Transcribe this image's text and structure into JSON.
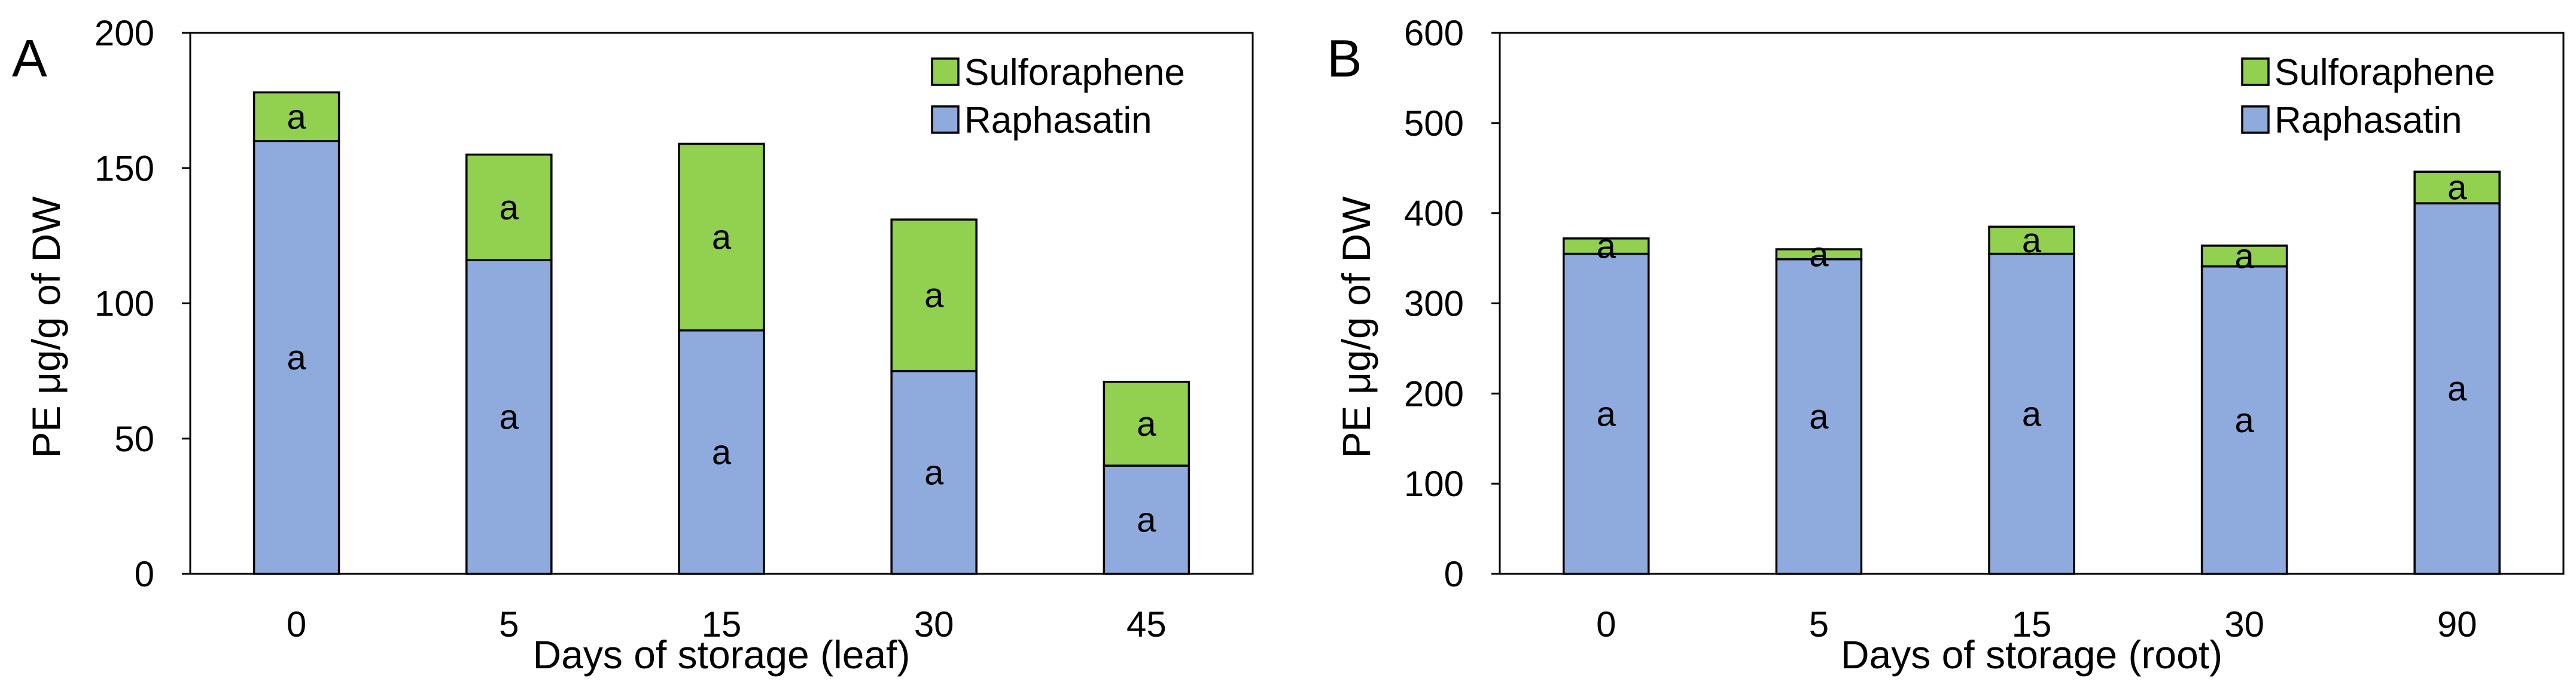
{
  "figure": {
    "background": "#ffffff"
  },
  "colors": {
    "sulforaphene": "#92d050",
    "raphasatin": "#8faadc"
  },
  "chart_data": [
    {
      "type": "bar",
      "stacked": true,
      "panel_label": "A",
      "xlabel": "Days of storage (leaf)",
      "ylabel": "PE μg/g of DW",
      "ylim": [
        0,
        200
      ],
      "yticks": [
        "0",
        "50",
        "100",
        "150",
        "200"
      ],
      "categories": [
        "0",
        "5",
        "15",
        "30",
        "45"
      ],
      "legend": {
        "position": "top-right",
        "entries": [
          "Sulforaphene",
          "Raphasatin"
        ]
      },
      "series": [
        {
          "name": "Raphasatin",
          "values": [
            160,
            116,
            90,
            75,
            40
          ],
          "labels": [
            "a",
            "a",
            "a",
            "a",
            "a"
          ]
        },
        {
          "name": "Sulforaphene",
          "values": [
            18,
            39,
            69,
            56,
            31
          ],
          "labels": [
            "a",
            "a",
            "a",
            "a",
            "a"
          ]
        }
      ]
    },
    {
      "type": "bar",
      "stacked": true,
      "panel_label": "B",
      "xlabel": "Days of storage (root)",
      "ylabel": "PE μg/g of DW",
      "ylim": [
        0,
        600
      ],
      "yticks": [
        "0",
        "100",
        "200",
        "300",
        "400",
        "500",
        "600"
      ],
      "categories": [
        "0",
        "5",
        "15",
        "30",
        "90"
      ],
      "legend": {
        "position": "top-right",
        "entries": [
          "Sulforaphene",
          "Raphasatin"
        ]
      },
      "series": [
        {
          "name": "Raphasatin",
          "values": [
            355,
            349,
            355,
            341,
            411
          ],
          "labels": [
            "a",
            "a",
            "a",
            "a",
            "a"
          ]
        },
        {
          "name": "Sulforaphene",
          "values": [
            17,
            11,
            30,
            23,
            35
          ],
          "labels": [
            "a",
            "a",
            "a",
            "a",
            "a"
          ]
        }
      ]
    }
  ]
}
